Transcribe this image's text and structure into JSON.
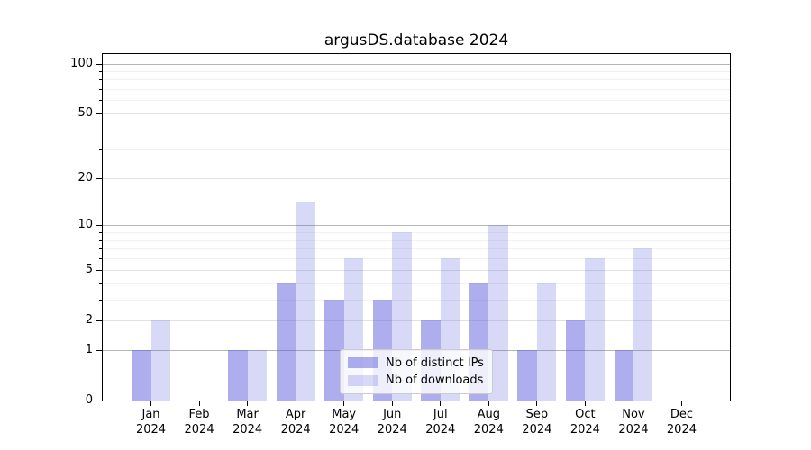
{
  "chart_data": {
    "type": "bar",
    "title": "argusDS.database 2024",
    "categories": [
      "Jan",
      "Feb",
      "Mar",
      "Apr",
      "May",
      "Jun",
      "Jul",
      "Aug",
      "Sep",
      "Oct",
      "Nov",
      "Dec"
    ],
    "year_label": "2024",
    "series": [
      {
        "name": "Nb of distinct IPs",
        "values": [
          1,
          0,
          1,
          4,
          3,
          3,
          2,
          4,
          1,
          2,
          1,
          0
        ],
        "color": "rgba(85,85,221,0.48)"
      },
      {
        "name": "Nb of downloads",
        "values": [
          2,
          0,
          1,
          14,
          6,
          9,
          6,
          10,
          4,
          6,
          7,
          0
        ],
        "color": "rgba(85,85,221,0.23)"
      }
    ],
    "yscale": "log1p",
    "ylim": [
      0,
      114
    ],
    "yticks": [
      0,
      1,
      2,
      5,
      10,
      20,
      50,
      100
    ],
    "ytick_levels": {
      "major": [
        1,
        10,
        100
      ],
      "mid": [
        2,
        5,
        20,
        50
      ],
      "minor": [
        3,
        4,
        6,
        7,
        8,
        9,
        30,
        40,
        60,
        70,
        80,
        90
      ]
    },
    "grid": true,
    "legend_position": "lower center"
  },
  "colors": {
    "grid_major": "#b6b6b6",
    "grid_mid": "#e2e2e2",
    "grid_minor": "#f1f1f1",
    "axis": "#000000",
    "text": "#000000",
    "legend_border": "#cccccc",
    "background": "#ffffff"
  }
}
